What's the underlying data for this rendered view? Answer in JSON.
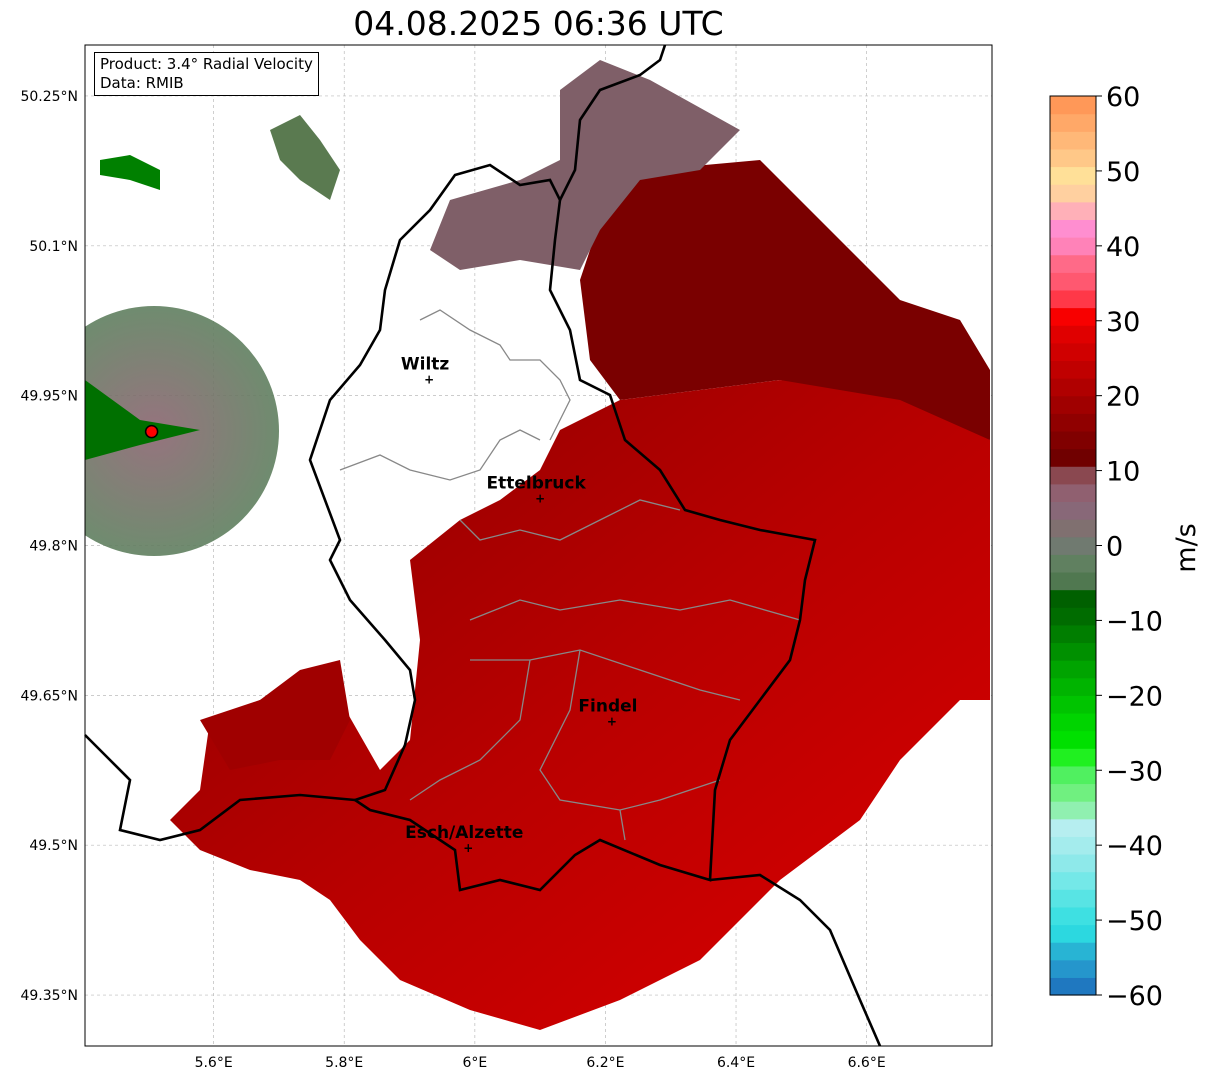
{
  "chart_data": {
    "type": "heatmap",
    "title": "04.08.2025 06:36 UTC",
    "product": "Product: 3.4° Radial Velocity",
    "source": "Data: RMIB",
    "xlim": [
      5.403,
      6.792
    ],
    "ylim": [
      49.299,
      50.301
    ],
    "x_ticks": [
      {
        "v": 5.6,
        "label": "5.6°E"
      },
      {
        "v": 5.8,
        "label": "5.8°E"
      },
      {
        "v": 6.0,
        "label": "6°E"
      },
      {
        "v": 6.2,
        "label": "6.2°E"
      },
      {
        "v": 6.4,
        "label": "6.4°E"
      },
      {
        "v": 6.6,
        "label": "6.6°E"
      }
    ],
    "y_ticks": [
      {
        "v": 50.25,
        "label": "50.25°N"
      },
      {
        "v": 50.1,
        "label": "50.1°N"
      },
      {
        "v": 49.95,
        "label": "49.95°N"
      },
      {
        "v": 49.8,
        "label": "49.8°N"
      },
      {
        "v": 49.65,
        "label": "49.65°N"
      },
      {
        "v": 49.5,
        "label": "49.5°N"
      },
      {
        "v": 49.35,
        "label": "49.35°N"
      }
    ],
    "grid": true,
    "radar_site": {
      "lon": 5.505,
      "lat": 49.914
    },
    "cities": [
      {
        "name": "Wiltz",
        "lon": 5.93,
        "lat": 49.966
      },
      {
        "name": "Ettelbruck",
        "lon": 6.1,
        "lat": 49.847
      },
      {
        "name": "Findel",
        "lon": 6.21,
        "lat": 49.624
      },
      {
        "name": "Esch/Alzette",
        "lon": 5.99,
        "lat": 49.497
      }
    ],
    "colorbar": {
      "label": "m/s",
      "min": -60,
      "max": 60,
      "ticks": [
        {
          "v": 60,
          "label": "60"
        },
        {
          "v": 50,
          "label": "50"
        },
        {
          "v": 40,
          "label": "40"
        },
        {
          "v": 30,
          "label": "30"
        },
        {
          "v": 20,
          "label": "20"
        },
        {
          "v": 10,
          "label": "10"
        },
        {
          "v": 0,
          "label": "0"
        },
        {
          "v": -10,
          "label": "−10"
        },
        {
          "v": -20,
          "label": "−20"
        },
        {
          "v": -30,
          "label": "−30"
        },
        {
          "v": -40,
          "label": "−40"
        },
        {
          "v": -50,
          "label": "−50"
        },
        {
          "v": -60,
          "label": "−60"
        }
      ],
      "colors": [
        "#1f78c0",
        "#2596cc",
        "#28b4d4",
        "#2cd8e0",
        "#3ee0e2",
        "#58e4e4",
        "#74e8e8",
        "#8ee9ea",
        "#a4eced",
        "#b6eef0",
        "#90f0b0",
        "#70f080",
        "#50f060",
        "#20f020",
        "#00e000",
        "#00d400",
        "#00c400",
        "#00b400",
        "#00a400",
        "#009000",
        "#007e00",
        "#006c00",
        "#006000",
        "#507850",
        "#608060",
        "#707a70",
        "#807070",
        "#886878",
        "#906070",
        "#8a4850",
        "#700000",
        "#800000",
        "#900000",
        "#a00000",
        "#b00000",
        "#c00000",
        "#d00000",
        "#e00000",
        "#f80000",
        "#ff3848",
        "#ff5870",
        "#ff6a88",
        "#ff82b8",
        "#ff8ed0",
        "#ffb0b8",
        "#ffd0a0",
        "#ffe098",
        "#ffc888",
        "#ffb878",
        "#ffa868",
        "#ff9858"
      ]
    }
  }
}
